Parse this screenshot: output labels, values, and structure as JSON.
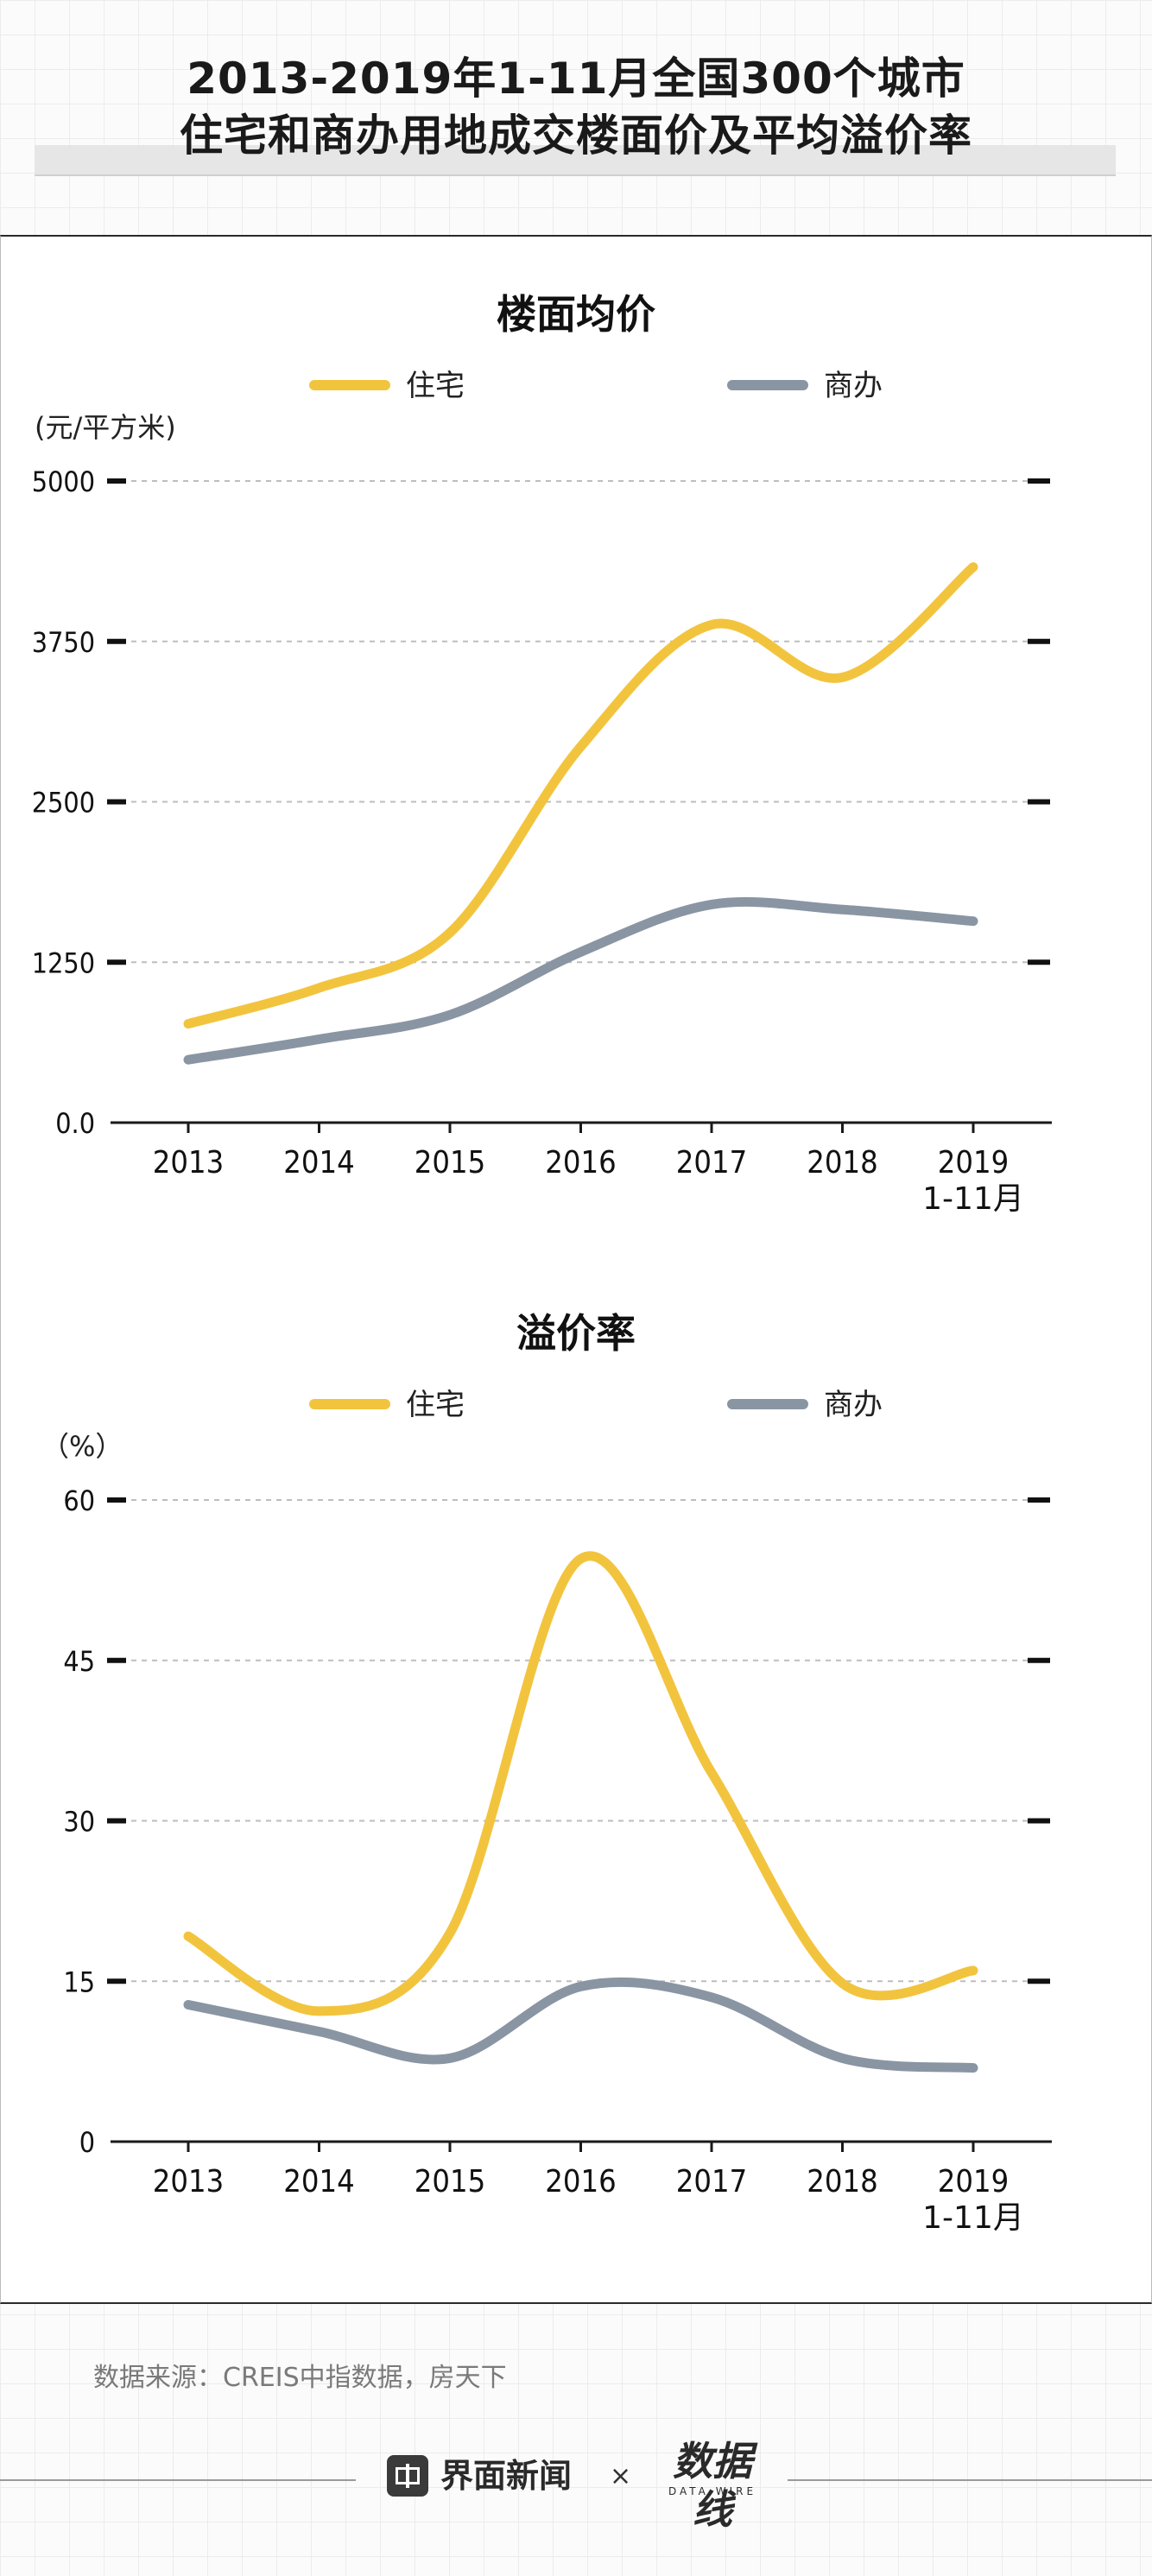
{
  "header": {
    "title_line1": "2013-2019年1-11月全国300个城市",
    "title_line2": "住宅和商办用地成交楼面价及平均溢价率"
  },
  "colors": {
    "residential": "#F2C43E",
    "commercial": "#8A95A3",
    "grid": "#bdbdbd",
    "axis": "#1a1a1a"
  },
  "chart_data": [
    {
      "type": "line",
      "title": "楼面均价",
      "ylabel": "(元/平方米)",
      "xlabel": "",
      "categories": [
        "2013",
        "2014",
        "2015",
        "2016",
        "2017",
        "2018",
        "2019"
      ],
      "category_sub": [
        "",
        "",
        "",
        "",
        "",
        "",
        "1-11月"
      ],
      "yticks": [
        "0.0",
        "1250",
        "2500",
        "3750",
        "5000"
      ],
      "ylim": [
        0,
        5000
      ],
      "grid": true,
      "legend_position": "top",
      "series": [
        {
          "name": "住宅",
          "color": "#F2C43E",
          "values": [
            770,
            1050,
            1480,
            2930,
            3880,
            3470,
            4330
          ]
        },
        {
          "name": "商办",
          "color": "#8A95A3",
          "values": [
            490,
            650,
            840,
            1330,
            1700,
            1660,
            1570
          ]
        }
      ]
    },
    {
      "type": "line",
      "title": "溢价率",
      "ylabel": "（%）",
      "xlabel": "",
      "categories": [
        "2013",
        "2014",
        "2015",
        "2016",
        "2017",
        "2018",
        "2019"
      ],
      "category_sub": [
        "",
        "",
        "",
        "",
        "",
        "",
        "1-11月"
      ],
      "yticks": [
        "0",
        "15",
        "30",
        "45",
        "60"
      ],
      "ylim": [
        0,
        60
      ],
      "grid": true,
      "legend_position": "top",
      "series": [
        {
          "name": "住宅",
          "color": "#F2C43E",
          "values": [
            19.2,
            12.2,
            19.5,
            54.5,
            34.5,
            14.8,
            16.0
          ]
        },
        {
          "name": "商办",
          "color": "#8A95A3",
          "values": [
            12.8,
            10.3,
            7.8,
            14.5,
            13.5,
            7.8,
            6.9
          ]
        }
      ]
    }
  ],
  "footer": {
    "source": "数据来源：CREIS中指数据，房天下",
    "brand": "界面新闻",
    "times": "×",
    "partner": "数据线",
    "partner_sub": "DATA WIRE"
  }
}
